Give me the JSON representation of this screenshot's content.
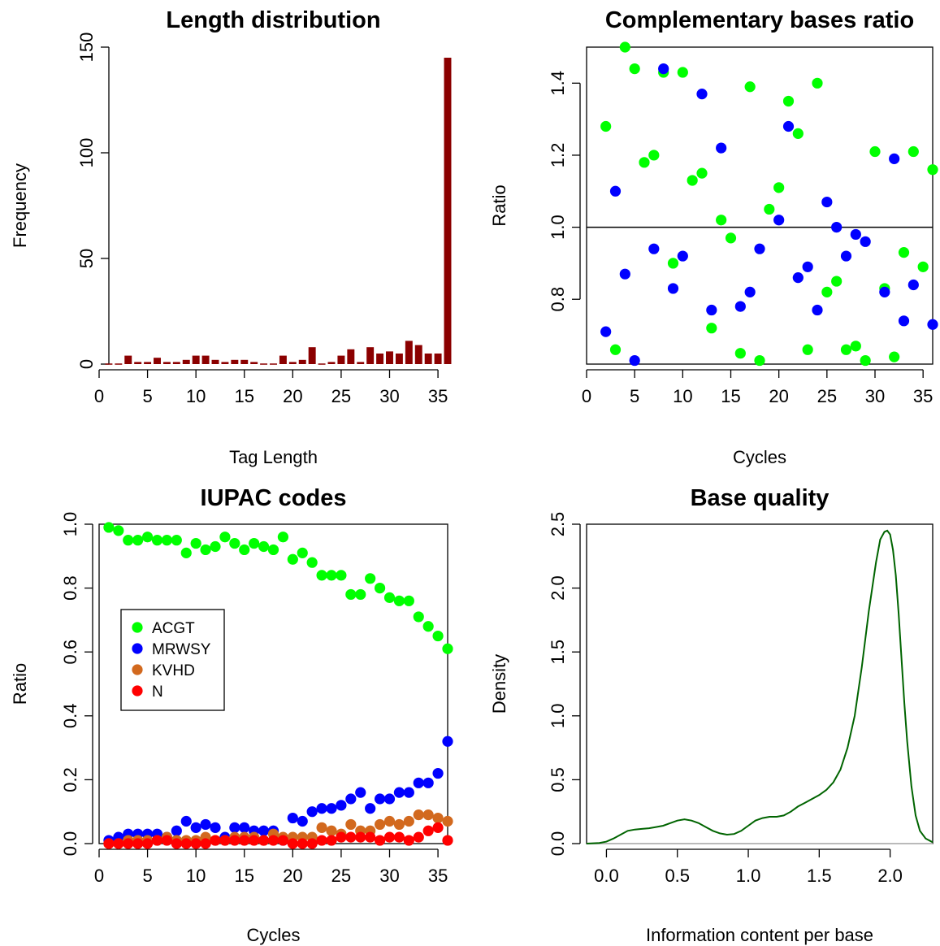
{
  "chart_data": [
    {
      "type": "bar",
      "title": "Length distribution",
      "xlabel": "Tag Length",
      "ylabel": "Frequency",
      "xlim": [
        0,
        36
      ],
      "ylim": [
        0,
        150
      ],
      "xticks": [
        0,
        5,
        10,
        15,
        20,
        25,
        30,
        35
      ],
      "yticks": [
        0,
        50,
        100,
        150
      ],
      "x": [
        1,
        2,
        3,
        4,
        5,
        6,
        7,
        8,
        9,
        10,
        11,
        12,
        13,
        14,
        15,
        16,
        17,
        18,
        19,
        20,
        21,
        22,
        23,
        24,
        25,
        26,
        27,
        28,
        29,
        30,
        31,
        32,
        33,
        34,
        35,
        36
      ],
      "values": [
        0,
        0,
        4,
        1,
        1,
        3,
        1,
        1,
        2,
        4,
        4,
        2,
        1,
        2,
        2,
        1,
        0,
        0,
        4,
        1,
        2,
        8,
        0,
        1,
        4,
        7,
        1,
        8,
        5,
        6,
        5,
        11,
        9,
        5,
        5,
        145
      ],
      "color": "#8b0000"
    },
    {
      "type": "scatter",
      "title": "Complementary bases ratio",
      "xlabel": "Cycles",
      "ylabel": "Ratio",
      "xlim": [
        0,
        36
      ],
      "ylim": [
        0.62,
        1.5
      ],
      "xticks": [
        0,
        5,
        10,
        15,
        20,
        25,
        30,
        35
      ],
      "yticks": [
        "0.8",
        "1.0",
        "1.2",
        "1.4"
      ],
      "hline": 1.0,
      "series": [
        {
          "color": "#00ff00",
          "x": [
            2,
            3,
            4,
            5,
            6,
            7,
            8,
            9,
            10,
            11,
            12,
            13,
            14,
            15,
            16,
            17,
            18,
            19,
            20,
            21,
            22,
            23,
            24,
            25,
            26,
            27,
            28,
            29,
            30,
            31,
            32,
            33,
            34,
            35,
            36
          ],
          "y": [
            1.28,
            0.66,
            1.5,
            1.44,
            1.18,
            1.2,
            1.43,
            0.9,
            1.43,
            1.13,
            1.15,
            0.72,
            1.02,
            0.97,
            0.65,
            1.39,
            0.63,
            1.05,
            1.11,
            1.35,
            1.26,
            0.66,
            1.4,
            0.82,
            0.85,
            0.66,
            0.67,
            0.63,
            1.21,
            0.83,
            0.64,
            0.93,
            1.21,
            0.89,
            1.16
          ]
        },
        {
          "color": "#0000ff",
          "x": [
            2,
            3,
            4,
            5,
            7,
            8,
            9,
            10,
            12,
            13,
            14,
            16,
            17,
            18,
            20,
            21,
            22,
            23,
            24,
            25,
            26,
            27,
            28,
            29,
            31,
            32,
            33,
            34,
            36
          ],
          "y": [
            0.71,
            1.1,
            0.87,
            0.63,
            0.94,
            1.44,
            0.83,
            0.92,
            1.37,
            0.77,
            1.22,
            0.78,
            0.82,
            0.94,
            1.02,
            1.28,
            0.86,
            0.89,
            0.77,
            1.07,
            1.0,
            0.92,
            0.98,
            0.96,
            0.82,
            1.19,
            0.74,
            0.84,
            0.73
          ]
        }
      ]
    },
    {
      "type": "scatter",
      "title": "IUPAC codes",
      "xlabel": "Cycles",
      "ylabel": "Ratio",
      "xlim": [
        0,
        36
      ],
      "ylim": [
        0,
        1
      ],
      "xticks": [
        0,
        5,
        10,
        15,
        20,
        25,
        30,
        35
      ],
      "yticks": [
        "0.0",
        "0.2",
        "0.4",
        "0.6",
        "0.8",
        "1.0"
      ],
      "legend": "left",
      "series": [
        {
          "name": "ACGT",
          "color": "#00ff00",
          "values": [
            0.99,
            0.98,
            0.95,
            0.95,
            0.96,
            0.95,
            0.95,
            0.95,
            0.91,
            0.94,
            0.92,
            0.93,
            0.96,
            0.94,
            0.92,
            0.94,
            0.93,
            0.92,
            0.96,
            0.89,
            0.91,
            0.88,
            0.84,
            0.84,
            0.84,
            0.78,
            0.78,
            0.83,
            0.8,
            0.77,
            0.76,
            0.76,
            0.71,
            0.68,
            0.65,
            0.61
          ]
        },
        {
          "name": "MRWSY",
          "color": "#0000ff",
          "values": [
            0.01,
            0.02,
            0.03,
            0.03,
            0.03,
            0.03,
            0.02,
            0.04,
            0.07,
            0.05,
            0.06,
            0.05,
            0.02,
            0.05,
            0.05,
            0.04,
            0.04,
            0.04,
            0.01,
            0.08,
            0.07,
            0.1,
            0.11,
            0.11,
            0.12,
            0.14,
            0.16,
            0.11,
            0.14,
            0.14,
            0.16,
            0.16,
            0.19,
            0.19,
            0.22,
            0.32
          ]
        },
        {
          "name": "KVHD",
          "color": "#d2691e",
          "values": [
            0.0,
            0.0,
            0.01,
            0.01,
            0.01,
            0.01,
            0.02,
            0.01,
            0.01,
            0.01,
            0.02,
            0.01,
            0.01,
            0.02,
            0.02,
            0.02,
            0.01,
            0.03,
            0.02,
            0.02,
            0.02,
            0.02,
            0.05,
            0.04,
            0.03,
            0.06,
            0.04,
            0.04,
            0.06,
            0.07,
            0.06,
            0.07,
            0.09,
            0.09,
            0.08,
            0.07
          ]
        },
        {
          "name": "N",
          "color": "#ff0000",
          "values": [
            0.0,
            0.0,
            0.0,
            0.0,
            0.0,
            0.01,
            0.01,
            0.0,
            0.0,
            0.0,
            0.0,
            0.01,
            0.01,
            0.01,
            0.01,
            0.01,
            0.01,
            0.01,
            0.01,
            0.0,
            0.0,
            0.0,
            0.01,
            0.01,
            0.02,
            0.02,
            0.02,
            0.02,
            0.01,
            0.02,
            0.02,
            0.01,
            0.02,
            0.04,
            0.05,
            0.01
          ]
        }
      ]
    },
    {
      "type": "line",
      "title": "Base quality",
      "xlabel": "Information content per base",
      "ylabel": "Density",
      "xlim": [
        -0.14,
        2.3
      ],
      "ylim": [
        0,
        2.5
      ],
      "xticks": [
        "0.0",
        "0.5",
        "1.0",
        "1.5",
        "2.0"
      ],
      "yticks": [
        "0.0",
        "0.5",
        "1.0",
        "1.5",
        "2.0",
        "2.5"
      ],
      "baseline": 0,
      "color": "#006400",
      "x": [
        -0.14,
        -0.05,
        0.0,
        0.05,
        0.1,
        0.15,
        0.2,
        0.25,
        0.3,
        0.35,
        0.4,
        0.45,
        0.5,
        0.55,
        0.6,
        0.65,
        0.7,
        0.75,
        0.8,
        0.85,
        0.9,
        0.95,
        1.0,
        1.05,
        1.1,
        1.15,
        1.2,
        1.25,
        1.3,
        1.35,
        1.4,
        1.45,
        1.5,
        1.55,
        1.6,
        1.65,
        1.7,
        1.75,
        1.8,
        1.85,
        1.9,
        1.93,
        1.96,
        1.98,
        2.0,
        2.02,
        2.04,
        2.06,
        2.08,
        2.1,
        2.12,
        2.15,
        2.18,
        2.21,
        2.25,
        2.3
      ],
      "y": [
        0.0,
        0.005,
        0.015,
        0.04,
        0.07,
        0.1,
        0.11,
        0.115,
        0.12,
        0.13,
        0.14,
        0.16,
        0.18,
        0.19,
        0.18,
        0.16,
        0.13,
        0.1,
        0.08,
        0.07,
        0.075,
        0.1,
        0.14,
        0.18,
        0.2,
        0.21,
        0.21,
        0.22,
        0.25,
        0.29,
        0.32,
        0.35,
        0.38,
        0.42,
        0.48,
        0.58,
        0.75,
        1.0,
        1.38,
        1.82,
        2.2,
        2.38,
        2.44,
        2.45,
        2.42,
        2.3,
        2.1,
        1.8,
        1.45,
        1.1,
        0.8,
        0.45,
        0.22,
        0.1,
        0.04,
        0.01
      ]
    }
  ]
}
